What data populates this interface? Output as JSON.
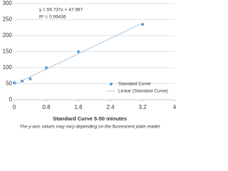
{
  "chart_data": {
    "type": "scatter",
    "title": "Standard Curve 5-50 minutes",
    "subtitle": "The y-axis values may vary depending on the fluorescent plate reader",
    "annotations": [
      "y = 59.737x + 47.967",
      "R² = 0.99436"
    ],
    "series": [
      {
        "name": "Standard Curve",
        "color": "#5b9bd5",
        "x": [
          0,
          0.2,
          0.4,
          0.8,
          1.6,
          3.2
        ],
        "values": [
          53,
          58,
          65,
          100,
          150,
          235
        ]
      },
      {
        "name": "Linear (Standard Curve)",
        "color": "#5b9bd5",
        "x": [
          0,
          3.2
        ],
        "values": [
          48,
          239
        ],
        "line": "dotted"
      }
    ],
    "xlim": [
      0,
      4
    ],
    "xticks": [
      0,
      0.8,
      1.6,
      2.4,
      3.2,
      4
    ],
    "ylim": [
      0,
      300
    ],
    "yticks": [
      0,
      50,
      100,
      150,
      200,
      250,
      300
    ],
    "grid": true,
    "legend": "lower right"
  }
}
